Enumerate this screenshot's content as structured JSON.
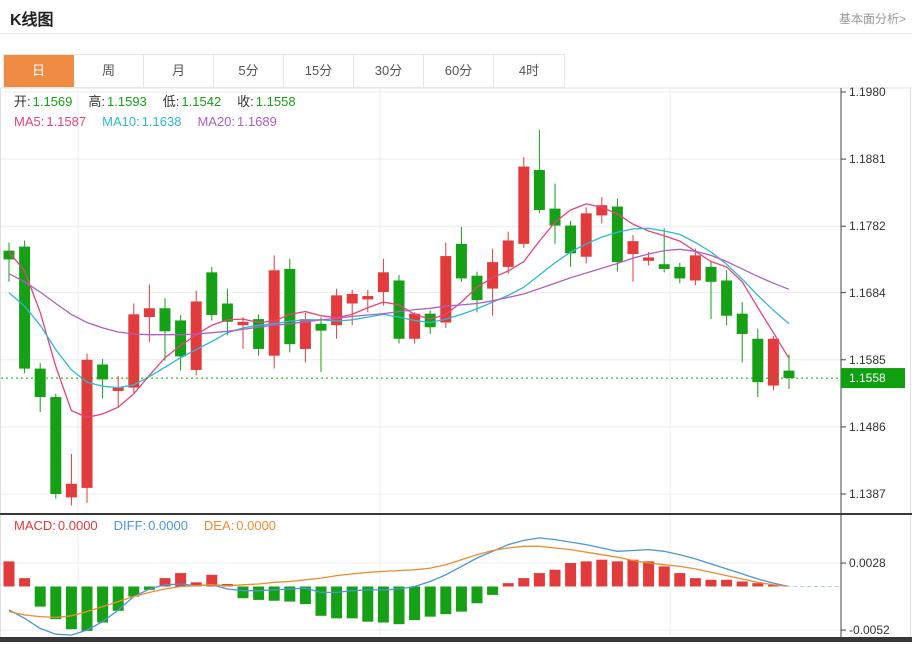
{
  "header": {
    "title": "K线图",
    "analysis_link": "基本面分析>"
  },
  "tabs": [
    {
      "id": "day",
      "label": "日",
      "active": true
    },
    {
      "id": "week",
      "label": "周",
      "active": false
    },
    {
      "id": "month",
      "label": "月",
      "active": false
    },
    {
      "id": "min5",
      "label": "5分",
      "active": false
    },
    {
      "id": "min15",
      "label": "15分",
      "active": false
    },
    {
      "id": "min30",
      "label": "30分",
      "active": false
    },
    {
      "id": "min60",
      "label": "60分",
      "active": false
    },
    {
      "id": "hour4",
      "label": "4时",
      "active": false
    }
  ],
  "ohlc_legend": {
    "open_label": "开:",
    "open_value": "1.1569",
    "high_label": "高:",
    "high_value": "1.1593",
    "low_label": "低:",
    "low_value": "1.1542",
    "close_label": "收:",
    "close_value": "1.1558"
  },
  "ma_legend": {
    "ma5_label": "MA5:",
    "ma5_value": "1.1587",
    "ma10_label": "MA10:",
    "ma10_value": "1.1638",
    "ma20_label": "MA20:",
    "ma20_value": "1.1689"
  },
  "macd_legend": {
    "macd_label": "MACD:",
    "macd_value": "0.0000",
    "diff_label": "DIFF:",
    "diff_value": "0.0000",
    "dea_label": "DEA:",
    "dea_value": "0.0000"
  },
  "price_tag": "1.1558",
  "colors": {
    "up": "#e23b3b",
    "down": "#15a015",
    "tag_bg": "#0ea00e",
    "tab_active": "#ef8b43",
    "ma5": "#e8437a",
    "ma10": "#2fb9d4",
    "ma20": "#b05fc6",
    "diff": "#4a96d9",
    "dea": "#ee8c30",
    "grid": "#ececec",
    "border": "#e0e0e0",
    "axis_line": "#444444",
    "dark_bar": "#383838",
    "axis_text": "#333333",
    "current_line": "#15a015",
    "zero_dash": "#a9d6ea",
    "value_green": "#15a015",
    "label_text": "#333333"
  },
  "chart_data": {
    "type": "candlestick",
    "title": "K线图",
    "legend_position": "top-left",
    "grid": true,
    "price_panel": {
      "ylabel": "price",
      "y_ticks": [
        1.198,
        1.1881,
        1.1782,
        1.1684,
        1.1585,
        1.1486,
        1.1387
      ],
      "ylim": [
        1.136,
        1.199
      ],
      "current_price": 1.1558,
      "candles_ohlc": [
        [
          1.1746,
          1.1758,
          1.17,
          1.1733
        ],
        [
          1.1752,
          1.1761,
          1.1565,
          1.1572
        ],
        [
          1.1572,
          1.158,
          1.1508,
          1.153
        ],
        [
          1.153,
          1.1535,
          1.138,
          1.1387
        ],
        [
          1.1382,
          1.1446,
          1.137,
          1.1402
        ],
        [
          1.1396,
          1.1594,
          1.1374,
          1.1585
        ],
        [
          1.1578,
          1.1586,
          1.1528,
          1.1556
        ],
        [
          1.1539,
          1.1561,
          1.1514,
          1.1544
        ],
        [
          1.1544,
          1.1668,
          1.1536,
          1.1652
        ],
        [
          1.1648,
          1.1696,
          1.1611,
          1.1661
        ],
        [
          1.1661,
          1.1676,
          1.1584,
          1.1627
        ],
        [
          1.1643,
          1.1651,
          1.1569,
          1.159
        ],
        [
          1.157,
          1.1687,
          1.1562,
          1.1671
        ],
        [
          1.1714,
          1.1722,
          1.1643,
          1.1651
        ],
        [
          1.1668,
          1.169,
          1.1621,
          1.1641
        ],
        [
          1.1636,
          1.1648,
          1.1601,
          1.1641
        ],
        [
          1.1645,
          1.1652,
          1.1591,
          1.1601
        ],
        [
          1.1591,
          1.1739,
          1.1572,
          1.1717
        ],
        [
          1.1719,
          1.1734,
          1.1596,
          1.1608
        ],
        [
          1.1601,
          1.1654,
          1.1581,
          1.1645
        ],
        [
          1.1638,
          1.1648,
          1.1567,
          1.1628
        ],
        [
          1.1636,
          1.169,
          1.1616,
          1.168
        ],
        [
          1.1668,
          1.1688,
          1.1636,
          1.1682
        ],
        [
          1.1674,
          1.1688,
          1.1655,
          1.1679
        ],
        [
          1.1685,
          1.1734,
          1.1665,
          1.1714
        ],
        [
          1.1702,
          1.171,
          1.1609,
          1.1616
        ],
        [
          1.1616,
          1.1655,
          1.1609,
          1.1653
        ],
        [
          1.1653,
          1.1658,
          1.1623,
          1.1633
        ],
        [
          1.164,
          1.1758,
          1.1632,
          1.1738
        ],
        [
          1.1756,
          1.1781,
          1.17,
          1.1705
        ],
        [
          1.1709,
          1.1715,
          1.1655,
          1.1673
        ],
        [
          1.169,
          1.1749,
          1.165,
          1.1729
        ],
        [
          1.1722,
          1.1774,
          1.1712,
          1.1761
        ],
        [
          1.1756,
          1.1884,
          1.175,
          1.187
        ],
        [
          1.1865,
          1.1924,
          1.1801,
          1.1806
        ],
        [
          1.1808,
          1.1845,
          1.1756,
          1.1783
        ],
        [
          1.1783,
          1.179,
          1.1722,
          1.1742
        ],
        [
          1.1737,
          1.181,
          1.1727,
          1.1801
        ],
        [
          1.1798,
          1.1825,
          1.1786,
          1.1813
        ],
        [
          1.1811,
          1.1823,
          1.1715,
          1.1729
        ],
        [
          1.1741,
          1.1769,
          1.17,
          1.176
        ],
        [
          1.1731,
          1.1744,
          1.1724,
          1.1736
        ],
        [
          1.1726,
          1.1779,
          1.1714,
          1.1719
        ],
        [
          1.1722,
          1.1728,
          1.1698,
          1.1705
        ],
        [
          1.1702,
          1.1749,
          1.1695,
          1.1739
        ],
        [
          1.1722,
          1.173,
          1.1645,
          1.17
        ],
        [
          1.1702,
          1.1717,
          1.1636,
          1.165
        ],
        [
          1.1653,
          1.167,
          1.1581,
          1.1623
        ],
        [
          1.1616,
          1.1631,
          1.153,
          1.1552
        ],
        [
          1.1547,
          1.162,
          1.154,
          1.1616
        ],
        [
          1.1569,
          1.1593,
          1.1542,
          1.1558
        ]
      ],
      "ma5": [
        1.1744,
        1.1716,
        1.1655,
        1.1575,
        1.151,
        1.15,
        1.1505,
        1.1515,
        1.1535,
        1.1562,
        1.1588,
        1.1606,
        1.1622,
        1.1636,
        1.1644,
        1.1645,
        1.164,
        1.1642,
        1.1652,
        1.1656,
        1.165,
        1.1647,
        1.1652,
        1.1662,
        1.167,
        1.1666,
        1.1652,
        1.1645,
        1.1652,
        1.167,
        1.1692,
        1.1706,
        1.1716,
        1.173,
        1.176,
        1.1788,
        1.1806,
        1.1815,
        1.181,
        1.18,
        1.1785,
        1.1775,
        1.1768,
        1.176,
        1.1745,
        1.173,
        1.1722,
        1.17,
        1.1662,
        1.1625,
        1.1587
      ],
      "ma10": [
        1.1684,
        1.1664,
        1.1636,
        1.16,
        1.157,
        1.1552,
        1.1546,
        1.1544,
        1.1548,
        1.156,
        1.1574,
        1.1588,
        1.16,
        1.1612,
        1.1625,
        1.1632,
        1.1636,
        1.1638,
        1.1642,
        1.1644,
        1.1644,
        1.1642,
        1.1644,
        1.1648,
        1.1652,
        1.1648,
        1.1643,
        1.164,
        1.1645,
        1.1652,
        1.166,
        1.167,
        1.168,
        1.1692,
        1.171,
        1.1728,
        1.1744,
        1.1756,
        1.1766,
        1.1773,
        1.1778,
        1.1779,
        1.1775,
        1.177,
        1.1758,
        1.1744,
        1.1726,
        1.1704,
        1.168,
        1.1658,
        1.1638
      ],
      "ma20": [
        1.1712,
        1.17,
        1.1685,
        1.1668,
        1.1652,
        1.164,
        1.1632,
        1.1626,
        1.1623,
        1.1622,
        1.1622,
        1.1622,
        1.1623,
        1.1625,
        1.1627,
        1.163,
        1.1633,
        1.1636,
        1.1638,
        1.1641,
        1.1644,
        1.1646,
        1.1649,
        1.1651,
        1.1653,
        1.1656,
        1.1659,
        1.1661,
        1.1664,
        1.1666,
        1.1668,
        1.1672,
        1.1677,
        1.1682,
        1.169,
        1.1698,
        1.1706,
        1.1713,
        1.172,
        1.1727,
        1.1735,
        1.1741,
        1.1746,
        1.1748,
        1.1745,
        1.1739,
        1.173,
        1.1719,
        1.1708,
        1.1698,
        1.1689
      ]
    },
    "macd_panel": {
      "y_ticks": [
        0.0028,
        -0.0052
      ],
      "histogram": [
        0.003,
        0.001,
        -0.0024,
        -0.0039,
        -0.0051,
        -0.0053,
        -0.0043,
        -0.0029,
        -0.0012,
        -0.0004,
        0.001,
        0.0016,
        0.0005,
        0.0014,
        0.0003,
        -0.0014,
        -0.0016,
        -0.0017,
        -0.0018,
        -0.0021,
        -0.0035,
        -0.0038,
        -0.0038,
        -0.0042,
        -0.0043,
        -0.0045,
        -0.004,
        -0.0036,
        -0.0033,
        -0.003,
        -0.002,
        -0.001,
        0.0004,
        0.001,
        0.0016,
        0.002,
        0.0028,
        0.003,
        0.0032,
        0.003,
        0.0032,
        0.003,
        0.0024,
        0.0016,
        0.001,
        0.0008,
        0.0008,
        0.0006,
        0.0004,
        0.0002,
        0.0
      ],
      "diff": [
        -0.0028,
        -0.0038,
        -0.005,
        -0.0057,
        -0.0058,
        -0.0052,
        -0.0042,
        -0.0028,
        -0.0012,
        -0.0003,
        0.0002,
        0.0003,
        0.0001,
        0.0002,
        -0.0003,
        -0.0005,
        -0.0005,
        -0.0004,
        -0.0003,
        -0.0002,
        -0.0007,
        -0.0007,
        -0.0005,
        -0.0004,
        -0.0004,
        -0.0003,
        0.0,
        0.0006,
        0.0014,
        0.0024,
        0.0034,
        0.0042,
        0.005,
        0.0055,
        0.0058,
        0.0056,
        0.0053,
        0.005,
        0.0046,
        0.0042,
        0.0043,
        0.0044,
        0.0042,
        0.0038,
        0.0033,
        0.0027,
        0.0021,
        0.0015,
        0.0009,
        0.0004,
        0.0
      ],
      "dea": [
        -0.003,
        -0.0034,
        -0.0036,
        -0.0037,
        -0.0035,
        -0.003,
        -0.0024,
        -0.0018,
        -0.0012,
        -0.0007,
        -0.0003,
        0.0,
        0.0001,
        0.0002,
        0.0001,
        0.0002,
        0.0003,
        0.0005,
        0.0006,
        0.0008,
        0.001,
        0.0013,
        0.0015,
        0.0017,
        0.0018,
        0.0019,
        0.002,
        0.0022,
        0.0026,
        0.0032,
        0.0038,
        0.0043,
        0.0046,
        0.0048,
        0.0048,
        0.0046,
        0.0044,
        0.0041,
        0.0038,
        0.0035,
        0.0031,
        0.0028,
        0.0026,
        0.0024,
        0.0021,
        0.0017,
        0.0013,
        0.0009,
        0.0005,
        0.0002,
        0.0
      ]
    }
  }
}
